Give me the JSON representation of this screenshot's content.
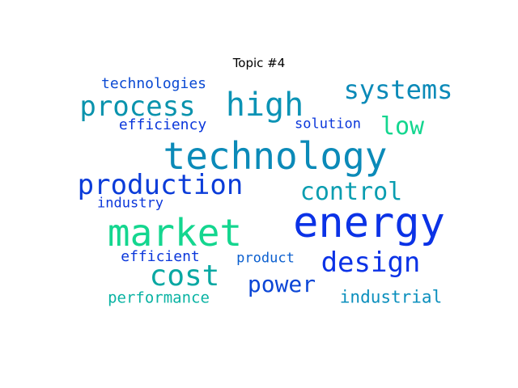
{
  "title": "Topic #4",
  "words": [
    {
      "text": "energy",
      "color": "#0b32e6"
    },
    {
      "text": "technology",
      "color": "#0b8ab8"
    },
    {
      "text": "market",
      "color": "#14d68f"
    },
    {
      "text": "high",
      "color": "#0b93b5"
    },
    {
      "text": "process",
      "color": "#0a93ad"
    },
    {
      "text": "systems",
      "color": "#0b8ab8"
    },
    {
      "text": "production",
      "color": "#0b3cd9"
    },
    {
      "text": "design",
      "color": "#0b32e6"
    },
    {
      "text": "cost",
      "color": "#0aa8a3"
    },
    {
      "text": "control",
      "color": "#0a9db0"
    },
    {
      "text": "power",
      "color": "#0b46d6"
    },
    {
      "text": "low",
      "color": "#14d68f"
    },
    {
      "text": "technologies",
      "color": "#0b4ad3"
    },
    {
      "text": "efficiency",
      "color": "#0b37db"
    },
    {
      "text": "solution",
      "color": "#0b37db"
    },
    {
      "text": "industry",
      "color": "#0b37db"
    },
    {
      "text": "efficient",
      "color": "#0b37db"
    },
    {
      "text": "product",
      "color": "#0b5fcf"
    },
    {
      "text": "performance",
      "color": "#0ab3a3"
    },
    {
      "text": "industrial",
      "color": "#0b8fbd"
    }
  ]
}
